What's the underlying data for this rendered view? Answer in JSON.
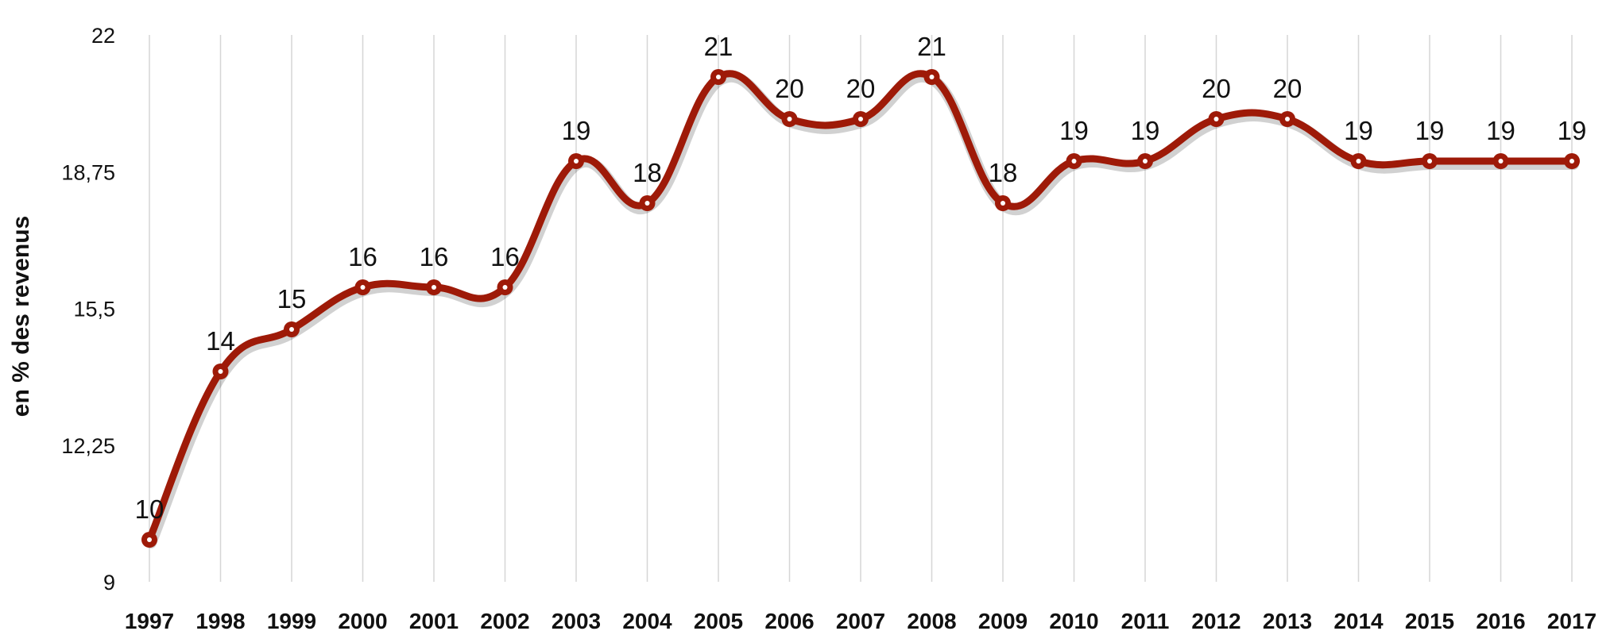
{
  "chart_data": {
    "type": "line",
    "title": "",
    "xlabel": "",
    "ylabel": "en % des revenus",
    "x": [
      "1997",
      "1998",
      "1999",
      "2000",
      "2001",
      "2002",
      "2003",
      "2004",
      "2005",
      "2006",
      "2007",
      "2008",
      "2009",
      "2010",
      "2011",
      "2012",
      "2013",
      "2014",
      "2015",
      "2016",
      "2017"
    ],
    "series": [
      {
        "values": [
          10,
          14,
          15,
          16,
          16,
          16,
          19,
          18,
          21,
          20,
          20,
          21,
          18,
          19,
          19,
          20,
          20,
          19,
          19,
          19,
          19
        ],
        "labels": [
          "10",
          "14",
          "15",
          "16",
          "16",
          "16",
          "19",
          "18",
          "21",
          "20",
          "20",
          "21",
          "18",
          "19",
          "19",
          "20",
          "20",
          "19",
          "19",
          "19",
          "19"
        ],
        "color": "#9e1a08"
      }
    ],
    "ylim": [
      9,
      22
    ],
    "yticks": [
      9,
      12.25,
      15.5,
      18.75,
      22
    ],
    "ytick_labels": [
      "9",
      "12,25",
      "15,5",
      "18,75",
      "22"
    ],
    "grid": "vertical",
    "smooth": true,
    "legend": "none"
  }
}
